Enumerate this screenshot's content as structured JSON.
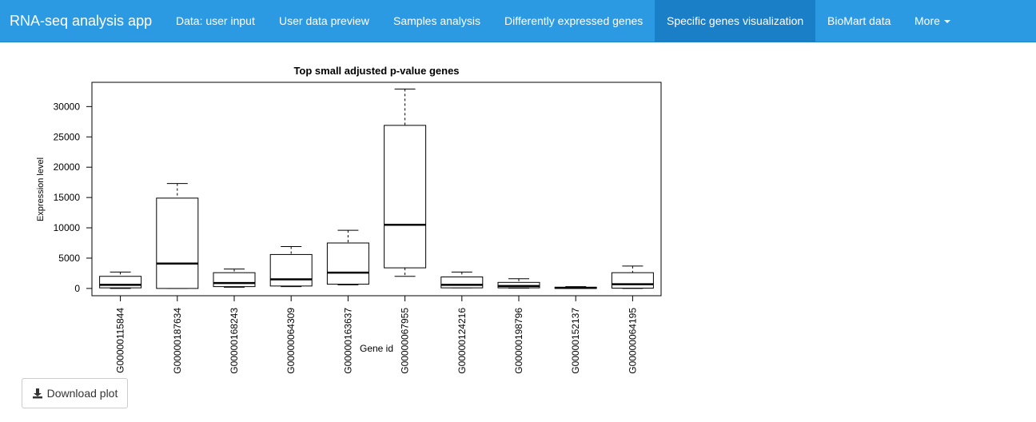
{
  "navbar": {
    "brand": "RNA-seq analysis app",
    "items": [
      {
        "label": "Data: user input"
      },
      {
        "label": "User data preview"
      },
      {
        "label": "Samples analysis"
      },
      {
        "label": "Differently expressed genes"
      },
      {
        "label": "Specific genes visualization",
        "active": true
      },
      {
        "label": "BioMart data"
      },
      {
        "label": "More"
      }
    ]
  },
  "colors": {
    "navbar": "#2c9ae3",
    "navbar_active": "#1a7fc7",
    "text_light": "#ffffff"
  },
  "icons": {
    "download": "download-icon",
    "dropdown": "caret-down-icon"
  },
  "download_button": {
    "label": "Download plot"
  },
  "chart_data": {
    "type": "boxplot",
    "title": "Top small adjusted p-value genes",
    "xlabel": "Gene id",
    "ylabel": "Expression level",
    "ylim": [
      -1200,
      34000
    ],
    "yticks": [
      0,
      5000,
      10000,
      15000,
      20000,
      25000,
      30000
    ],
    "ytick_labels": [
      "0",
      "5000",
      "10000",
      "15000",
      "20000",
      "25000",
      "30000"
    ],
    "categories": [
      "G00000115844",
      "G00000187634",
      "G00000168243",
      "G00000064309",
      "G00000163637",
      "G00000067955",
      "G00000124216",
      "G00000198796",
      "G00000152137",
      "G00000064195"
    ],
    "boxes": [
      {
        "whisker_low": 0,
        "q1": 100,
        "median": 600,
        "q3": 2000,
        "whisker_high": 2700
      },
      {
        "whisker_low": 0,
        "q1": 0,
        "median": 4100,
        "q3": 14900,
        "whisker_high": 17300
      },
      {
        "whisker_low": 200,
        "q1": 300,
        "median": 900,
        "q3": 2600,
        "whisker_high": 3200
      },
      {
        "whisker_low": 300,
        "q1": 400,
        "median": 1500,
        "q3": 5600,
        "whisker_high": 6900
      },
      {
        "whisker_low": 600,
        "q1": 700,
        "median": 2600,
        "q3": 7500,
        "whisker_high": 9600
      },
      {
        "whisker_low": 2000,
        "q1": 3400,
        "median": 10500,
        "q3": 26900,
        "whisker_high": 32900
      },
      {
        "whisker_low": 100,
        "q1": 100,
        "median": 600,
        "q3": 1900,
        "whisker_high": 2700
      },
      {
        "whisker_low": 50,
        "q1": 100,
        "median": 400,
        "q3": 1000,
        "whisker_high": 1600
      },
      {
        "whisker_low": 0,
        "q1": 0,
        "median": 100,
        "q3": 200,
        "whisker_high": 300
      },
      {
        "whisker_low": 0,
        "q1": 50,
        "median": 700,
        "q3": 2600,
        "whisker_high": 3700
      }
    ],
    "grid": false,
    "legend": "none"
  }
}
